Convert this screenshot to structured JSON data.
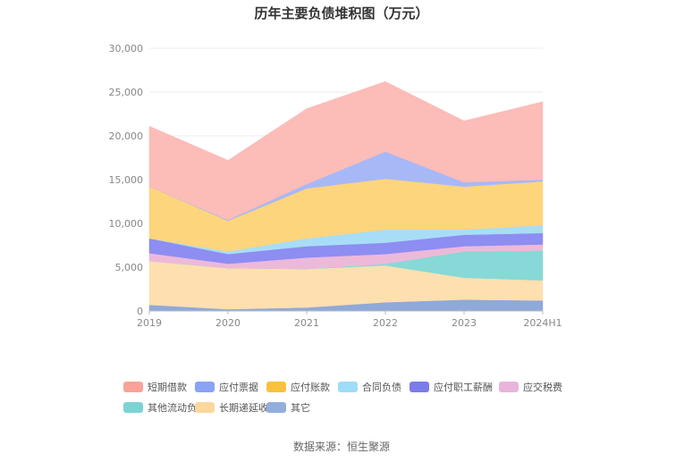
{
  "chart_data": {
    "type": "area",
    "stacked": true,
    "title": "历年主要负债堆积图（万元）",
    "x": [
      "2019",
      "2020",
      "2021",
      "2022",
      "2023",
      "2024H1"
    ],
    "ylim": [
      0,
      30000
    ],
    "yticks": [
      "0",
      "5,000",
      "10,000",
      "15,000",
      "20,000",
      "25,000",
      "30,000"
    ],
    "grid": true,
    "legend_position": "bottom",
    "series": [
      {
        "name": "其它",
        "color": "#8fa9d9",
        "values": [
          700,
          200,
          400,
          1000,
          1300,
          1200
        ]
      },
      {
        "name": "长期递延收益",
        "color": "#fddfb0",
        "values": [
          5000,
          4700,
          4400,
          4200,
          2500,
          2300
        ]
      },
      {
        "name": "其他流动负债",
        "color": "#86d9d6",
        "values": [
          0,
          0,
          0,
          200,
          3000,
          3400
        ]
      },
      {
        "name": "应交税费",
        "color": "#edb9d9",
        "values": [
          900,
          500,
          1300,
          1100,
          600,
          700
        ]
      },
      {
        "name": "应付职工薪酬",
        "color": "#8d8df2",
        "values": [
          1700,
          1100,
          1300,
          1300,
          1300,
          1300
        ]
      },
      {
        "name": "合同负债",
        "color": "#a8ddf7",
        "values": [
          0,
          300,
          900,
          1500,
          600,
          900
        ]
      },
      {
        "name": "应付账款",
        "color": "#fdd57c",
        "values": [
          5900,
          3500,
          5700,
          5800,
          4900,
          5000
        ]
      },
      {
        "name": "应付票据",
        "color": "#a7b8f7",
        "values": [
          0,
          100,
          500,
          3100,
          500,
          200
        ]
      },
      {
        "name": "短期借款",
        "color": "#fcbcb8",
        "values": [
          6900,
          6800,
          8600,
          8000,
          7000,
          8900
        ]
      }
    ],
    "legend_order": [
      "短期借款",
      "应付票据",
      "应付账款",
      "合同负债",
      "应付职工薪酬",
      "应交税费",
      "其他流动负债",
      "长期递延收益",
      "其它"
    ],
    "legend_colors": {
      "短期借款": "#f9a39b",
      "应付票据": "#8aa3f5",
      "应付账款": "#f9c13f",
      "合同负债": "#9fdcf7",
      "应付职工薪酬": "#7b7bea",
      "应交税费": "#e8b4dc",
      "其他流动负债": "#7dd3d3",
      "长期递延收益": "#fdd79c",
      "其它": "#93aedc"
    }
  },
  "source": "数据来源：恒生聚源"
}
